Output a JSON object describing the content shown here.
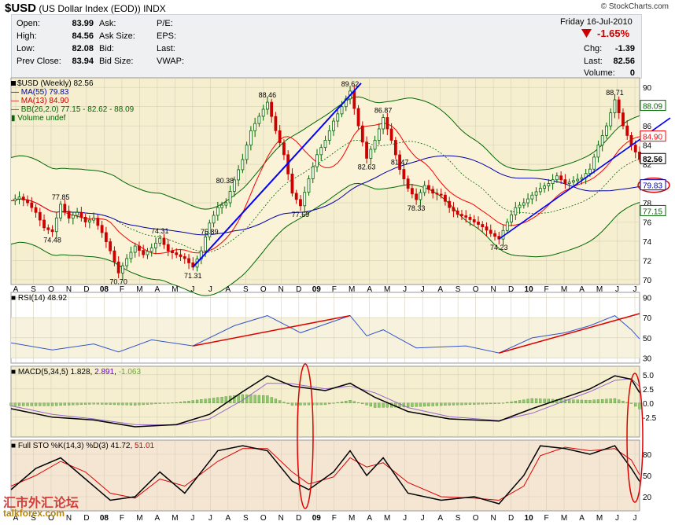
{
  "header": {
    "symbol": "$USD",
    "name": "(US Dollar Index (EOD))",
    "exchange": "INDX",
    "watermark": "© StockCharts.com"
  },
  "quote": {
    "date": "Friday  16-Jul-2010",
    "pct_change": "-1.65%",
    "rows": [
      {
        "label": "Open:",
        "value": "83.99"
      },
      {
        "label": "High:",
        "value": "84.56"
      },
      {
        "label": "Low:",
        "value": "82.08"
      },
      {
        "label": "Prev Close:",
        "value": "83.94"
      }
    ],
    "mid_labels": [
      "Ask:",
      "Ask Size:",
      "Bid:",
      "Bid Size:"
    ],
    "right_labels": [
      "P/E:",
      "EPS:",
      "Last:",
      "VWAP:"
    ],
    "summary": [
      {
        "label": "Chg:",
        "value": "-1.39"
      },
      {
        "label": "Last:",
        "value": "82.56"
      },
      {
        "label": "Volume:",
        "value": "0"
      }
    ]
  },
  "legend": {
    "price": "$USD (Weekly) 82.56",
    "ma55": "MA(55) 79.83",
    "ma13": "MA(13) 84.90",
    "bb": "BB(26,2.0) 77.15 - 82.62 - 88.09",
    "volume": "Volume undef",
    "rsi_name": "RSI(14)",
    "rsi_value": "48.92",
    "macd_name": "MACD(5,34,5)",
    "macd_v1": "1.828",
    "macd_v2": "2.891",
    "macd_v3": "-1.063",
    "sto_name": "Full STO %K(14,3) %D(3)",
    "sto_v1": "41.72",
    "sto_v2": "51.01"
  },
  "footer": {
    "site": "talkforex.com",
    "logo_text": "汇市外汇论坛"
  },
  "colors": {
    "price_up": "#006600",
    "price_down": "#cc0000",
    "ma13": "#ff0000",
    "ma55": "#0000aa",
    "bb": "#006600",
    "trend": "#0000ff",
    "rsi_trend": "#dd0000",
    "panel_bg": "#f5efcf",
    "circle": "#dd0000"
  },
  "chart_data": {
    "type": "line",
    "title": "$USD (Weekly)",
    "x_labels": [
      "A",
      "S",
      "O",
      "N",
      "D",
      "08",
      "F",
      "M",
      "A",
      "M",
      "J",
      "J",
      "A",
      "S",
      "O",
      "N",
      "D",
      "09",
      "F",
      "M",
      "A",
      "M",
      "J",
      "J",
      "A",
      "S",
      "O",
      "N",
      "D",
      "10",
      "F",
      "M",
      "A",
      "M",
      "J",
      "J"
    ],
    "price_axis": {
      "ticks": [
        70,
        72,
        74,
        76,
        78,
        80,
        82,
        84,
        86,
        88,
        90
      ],
      "ylim": [
        69.5,
        91
      ]
    },
    "price_path": [
      [
        0,
        78.2
      ],
      [
        2,
        78.6
      ],
      [
        4,
        78.0
      ],
      [
        6,
        77.0
      ],
      [
        8,
        75.4
      ],
      [
        10,
        75.0
      ],
      [
        12,
        77.85
      ],
      [
        14,
        76.4
      ],
      [
        16,
        77.0
      ],
      [
        18,
        76.0
      ],
      [
        20,
        76.4
      ],
      [
        22,
        74.9
      ],
      [
        24,
        73.0
      ],
      [
        26,
        70.7
      ],
      [
        28,
        72.2
      ],
      [
        30,
        73.5
      ],
      [
        32,
        72.6
      ],
      [
        34,
        73.3
      ],
      [
        36,
        74.31
      ],
      [
        38,
        73.0
      ],
      [
        40,
        72.6
      ],
      [
        42,
        72.2
      ],
      [
        44,
        71.31
      ],
      [
        46,
        73.0
      ],
      [
        48,
        75.89
      ],
      [
        50,
        77.5
      ],
      [
        52,
        78.0
      ],
      [
        54,
        80.38
      ],
      [
        56,
        82.5
      ],
      [
        58,
        85.5
      ],
      [
        60,
        87.0
      ],
      [
        62,
        88.46
      ],
      [
        64,
        85.5
      ],
      [
        66,
        83.0
      ],
      [
        68,
        79.0
      ],
      [
        70,
        77.69
      ],
      [
        72,
        80.5
      ],
      [
        74,
        83.0
      ],
      [
        76,
        84.5
      ],
      [
        78,
        86.5
      ],
      [
        80,
        88.0
      ],
      [
        82,
        89.62
      ],
      [
        84,
        86.0
      ],
      [
        86,
        82.63
      ],
      [
        88,
        84.5
      ],
      [
        90,
        86.87
      ],
      [
        92,
        84.5
      ],
      [
        94,
        81.47
      ],
      [
        96,
        79.5
      ],
      [
        98,
        78.33
      ],
      [
        100,
        79.8
      ],
      [
        102,
        79.0
      ],
      [
        104,
        78.8
      ],
      [
        106,
        77.5
      ],
      [
        108,
        76.8
      ],
      [
        110,
        76.5
      ],
      [
        112,
        76.0
      ],
      [
        114,
        75.5
      ],
      [
        116,
        74.8
      ],
      [
        118,
        74.23
      ],
      [
        120,
        76.0
      ],
      [
        122,
        77.5
      ],
      [
        124,
        78.0
      ],
      [
        126,
        78.8
      ],
      [
        128,
        79.5
      ],
      [
        130,
        80.0
      ],
      [
        132,
        80.8
      ],
      [
        134,
        80.0
      ],
      [
        136,
        80.3
      ],
      [
        138,
        80.6
      ],
      [
        140,
        81.5
      ],
      [
        142,
        84.0
      ],
      [
        144,
        86.0
      ],
      [
        146,
        88.71
      ],
      [
        148,
        86.0
      ],
      [
        150,
        84.0
      ],
      [
        152,
        82.56
      ]
    ],
    "price_annotations": [
      {
        "label": "77.85",
        "x": 12,
        "y": 77.85,
        "pos": "above"
      },
      {
        "label": "74.48",
        "x": 10,
        "y": 75.0,
        "pos": "below"
      },
      {
        "label": "70.70",
        "x": 26,
        "y": 70.7,
        "pos": "below"
      },
      {
        "label": "74.31",
        "x": 36,
        "y": 74.31,
        "pos": "above"
      },
      {
        "label": "71.31",
        "x": 44,
        "y": 71.31,
        "pos": "below"
      },
      {
        "label": "75.89",
        "x": 48,
        "y": 75.89,
        "pos": "below"
      },
      {
        "label": "80.38",
        "x": 54,
        "y": 80.38,
        "pos": "left"
      },
      {
        "label": "88.46",
        "x": 62,
        "y": 88.46,
        "pos": "above"
      },
      {
        "label": "77.69",
        "x": 70,
        "y": 77.69,
        "pos": "below"
      },
      {
        "label": "89.62",
        "x": 82,
        "y": 89.62,
        "pos": "above"
      },
      {
        "label": "82.63",
        "x": 86,
        "y": 82.63,
        "pos": "below"
      },
      {
        "label": "86.87",
        "x": 90,
        "y": 86.87,
        "pos": "above"
      },
      {
        "label": "81.47",
        "x": 94,
        "y": 81.47,
        "pos": "above"
      },
      {
        "label": "78.33",
        "x": 98,
        "y": 78.33,
        "pos": "below"
      },
      {
        "label": "74.23",
        "x": 118,
        "y": 74.23,
        "pos": "below"
      },
      {
        "label": "88.71",
        "x": 146,
        "y": 88.71,
        "pos": "above"
      }
    ],
    "right_tags": [
      {
        "label": "88.09",
        "y": 88.09
      },
      {
        "label": "84.90",
        "y": 84.9
      },
      {
        "label": "82.56",
        "y": 82.56
      },
      {
        "label": "79.83",
        "y": 79.83
      },
      {
        "label": "77.15",
        "y": 77.15
      }
    ],
    "rsi": {
      "ticks": [
        30,
        50,
        70,
        90
      ],
      "ylim": [
        25,
        95
      ],
      "path": [
        [
          0,
          45
        ],
        [
          10,
          38
        ],
        [
          20,
          44
        ],
        [
          26,
          36
        ],
        [
          34,
          48
        ],
        [
          44,
          42
        ],
        [
          54,
          62
        ],
        [
          62,
          72
        ],
        [
          70,
          55
        ],
        [
          82,
          72
        ],
        [
          86,
          52
        ],
        [
          90,
          58
        ],
        [
          98,
          40
        ],
        [
          110,
          42
        ],
        [
          118,
          35
        ],
        [
          126,
          50
        ],
        [
          134,
          55
        ],
        [
          140,
          62
        ],
        [
          146,
          72
        ],
        [
          150,
          58
        ],
        [
          152,
          48.92
        ]
      ]
    },
    "macd": {
      "ticks": [
        5.0,
        2.5,
        0.0,
        -2.5
      ],
      "ylim": [
        -6,
        6.5
      ],
      "macd": [
        [
          0,
          -1
        ],
        [
          10,
          -2.5
        ],
        [
          20,
          -3
        ],
        [
          30,
          -4.2
        ],
        [
          40,
          -3.8
        ],
        [
          48,
          -2
        ],
        [
          56,
          2
        ],
        [
          62,
          4.8
        ],
        [
          68,
          3
        ],
        [
          76,
          2.2
        ],
        [
          82,
          3.5
        ],
        [
          88,
          1
        ],
        [
          96,
          -1.5
        ],
        [
          106,
          -2.8
        ],
        [
          118,
          -3.2
        ],
        [
          126,
          -1
        ],
        [
          134,
          1
        ],
        [
          140,
          2.5
        ],
        [
          146,
          4.8
        ],
        [
          150,
          4.2
        ],
        [
          152,
          1.828
        ]
      ],
      "signal": [
        [
          0,
          -0.5
        ],
        [
          10,
          -2
        ],
        [
          20,
          -2.8
        ],
        [
          30,
          -3.8
        ],
        [
          40,
          -3.9
        ],
        [
          48,
          -2.8
        ],
        [
          56,
          0.5
        ],
        [
          62,
          3.5
        ],
        [
          68,
          3.4
        ],
        [
          76,
          2.5
        ],
        [
          82,
          3
        ],
        [
          88,
          1.8
        ],
        [
          96,
          -0.8
        ],
        [
          106,
          -2.4
        ],
        [
          118,
          -3.1
        ],
        [
          126,
          -1.8
        ],
        [
          134,
          0.4
        ],
        [
          140,
          2
        ],
        [
          146,
          4
        ],
        [
          150,
          4.3
        ],
        [
          152,
          2.891
        ]
      ]
    },
    "sto": {
      "ticks": [
        20,
        50,
        80
      ],
      "ylim": [
        0,
        100
      ],
      "k": [
        [
          0,
          30
        ],
        [
          6,
          60
        ],
        [
          12,
          75
        ],
        [
          18,
          45
        ],
        [
          24,
          15
        ],
        [
          30,
          20
        ],
        [
          36,
          55
        ],
        [
          42,
          25
        ],
        [
          50,
          85
        ],
        [
          56,
          92
        ],
        [
          62,
          85
        ],
        [
          68,
          42
        ],
        [
          72,
          30
        ],
        [
          78,
          55
        ],
        [
          82,
          85
        ],
        [
          86,
          50
        ],
        [
          90,
          75
        ],
        [
          96,
          25
        ],
        [
          104,
          15
        ],
        [
          112,
          20
        ],
        [
          118,
          10
        ],
        [
          124,
          50
        ],
        [
          128,
          92
        ],
        [
          134,
          88
        ],
        [
          140,
          80
        ],
        [
          146,
          92
        ],
        [
          150,
          60
        ],
        [
          152,
          41.72
        ]
      ],
      "d": [
        [
          0,
          35
        ],
        [
          6,
          50
        ],
        [
          12,
          70
        ],
        [
          18,
          55
        ],
        [
          24,
          25
        ],
        [
          30,
          18
        ],
        [
          36,
          45
        ],
        [
          42,
          35
        ],
        [
          50,
          70
        ],
        [
          56,
          88
        ],
        [
          62,
          88
        ],
        [
          68,
          55
        ],
        [
          72,
          38
        ],
        [
          78,
          48
        ],
        [
          82,
          75
        ],
        [
          86,
          62
        ],
        [
          90,
          68
        ],
        [
          96,
          40
        ],
        [
          104,
          20
        ],
        [
          112,
          18
        ],
        [
          118,
          15
        ],
        [
          124,
          35
        ],
        [
          128,
          78
        ],
        [
          134,
          90
        ],
        [
          140,
          85
        ],
        [
          146,
          88
        ],
        [
          150,
          72
        ],
        [
          152,
          51.01
        ]
      ]
    }
  }
}
